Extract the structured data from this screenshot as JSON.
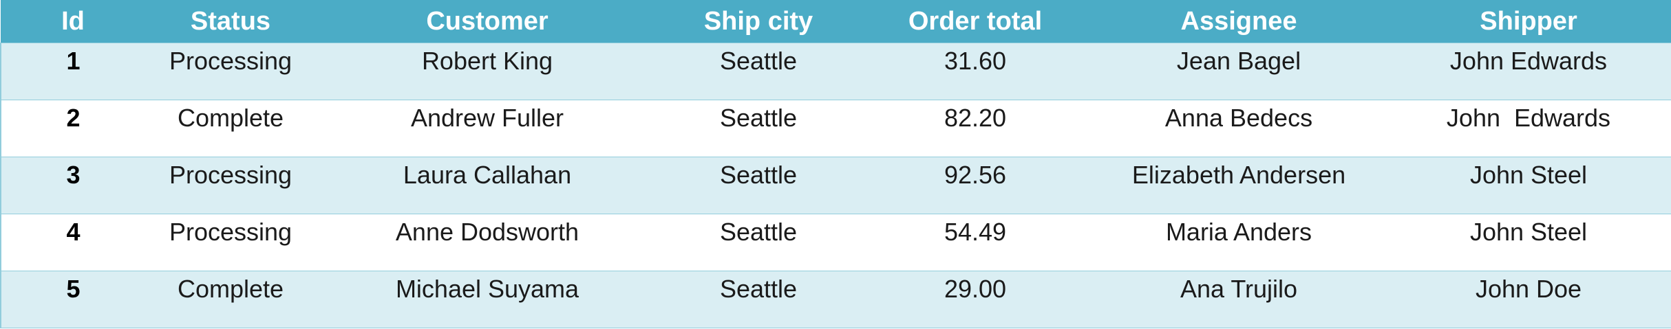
{
  "table": {
    "header": [
      "Id",
      "Status",
      "Customer",
      "Ship city",
      "Order total",
      "Assignee",
      "Shipper"
    ],
    "rows": [
      [
        "1",
        "Processing",
        "Robert King",
        "Seattle",
        "31.60",
        "Jean Bagel",
        "John Edwards"
      ],
      [
        "2",
        "Complete",
        "Andrew Fuller",
        "Seattle",
        "82.20",
        "Anna Bedecs",
        "John  Edwards"
      ],
      [
        "3",
        "Processing",
        "Laura Callahan",
        "Seattle",
        "92.56",
        "Elizabeth Andersen",
        "John Steel"
      ],
      [
        "4",
        "Processing",
        "Anne Dodsworth",
        "Seattle",
        "54.49",
        "Maria Anders",
        "John Steel"
      ],
      [
        "5",
        "Complete",
        "Michael Suyama",
        "Seattle",
        "29.00",
        "Ana Trujilo",
        "John Doe"
      ]
    ]
  }
}
